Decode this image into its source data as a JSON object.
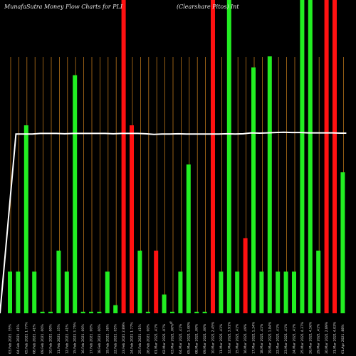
{
  "chart_data": {
    "type": "bar",
    "title_left": "MunafaSutra  Money Flow  Charts for PLI",
    "title_right": "(Clearshare Pitos) Int",
    "center_label": "%",
    "ylim": [
      0,
      100
    ],
    "colors": {
      "background": "#000000",
      "up": "#22ee22",
      "down": "#ff1111",
      "line": "#ffffff",
      "grid": "#b8731a"
    },
    "categories": [
      "03.Feb 2021 .35%",
      "04.Feb 2021 .41%",
      "05.Feb 2021 1.77%",
      "08.Feb 2021 .41%",
      "09.Feb 2021 .00%",
      "10.Feb 2021 .00%",
      "11.Feb 2021 .35%",
      "12.Feb 2021 .41%",
      "15.Feb 2021 3.75%",
      "16.Feb 2021 .00%",
      "17.Feb 2021 .00%",
      "18.Feb 2021 .00%",
      "19.Feb 2021 .36%",
      "22.Feb 2021 .05%",
      "23.Feb 2021 2.89%",
      "24.Feb 2021 1.77%",
      "25.Feb 2021 .41%",
      "26.Feb 2021 .00%",
      "01.Mar 2021 .41%",
      "02.Mar 2021 .07%",
      "03.Mar 2021 .00%",
      "04.Mar 2021 .41%",
      "05.Mar 2021 1.00%",
      "08.Mar 2021 .00%",
      "09.Mar 2021 .00%",
      "10.Mar 2021 2.45%",
      "11.Mar 2021 .41%",
      "12.Mar 2021 3.91%",
      "15.Mar 2021 .41%",
      "16.Mar 2021 .49%",
      "17.Mar 2021 1.34%",
      "18.Mar 2021 .41%",
      "19.Mar 2021 1.84%",
      "22.Mar 2021 .41%",
      "23.Mar 2021 .41%",
      "24.Mar 2021 .41%",
      "25.Mar 2021 4.37%",
      "26.Mar 2021 4.56%",
      "29.Mar 2021 .41%",
      "30.Mar 2021 2.89%",
      "31.Mar 2021 4.03%",
      "01.Apr 2021 .88%"
    ],
    "values": [
      13.3,
      13.3,
      60,
      13.3,
      0.5,
      0.5,
      20,
      13.3,
      76,
      0.5,
      0.5,
      0.5,
      13.3,
      2.6,
      100,
      60,
      20,
      0.5,
      20,
      6,
      0.5,
      13.3,
      47.5,
      0.5,
      0.5,
      100,
      13.3,
      100,
      13.3,
      24,
      78.5,
      13.3,
      82,
      13.3,
      13.3,
      13.3,
      100,
      100,
      20,
      100,
      100,
      45
    ],
    "directions": [
      "up",
      "up",
      "up",
      "up",
      "up",
      "up",
      "up",
      "up",
      "up",
      "up",
      "up",
      "up",
      "up",
      "up",
      "down",
      "down",
      "up",
      "up",
      "down",
      "up",
      "up",
      "up",
      "up",
      "up",
      "up",
      "down",
      "up",
      "up",
      "up",
      "down",
      "up",
      "up",
      "up",
      "up",
      "up",
      "up",
      "up",
      "up",
      "up",
      "down",
      "down",
      "up"
    ],
    "line_values": [
      0,
      57.2,
      57.2,
      57.2,
      57.4,
      57.4,
      57.4,
      57.3,
      57.4,
      57.4,
      57.4,
      57.4,
      57.4,
      57.3,
      57.4,
      57.4,
      57.4,
      57.3,
      57.1,
      57.2,
      57.2,
      57.3,
      57.2,
      57.2,
      57.2,
      57.2,
      57.2,
      57.3,
      57.2,
      57.3,
      57.6,
      57.5,
      57.6,
      57.7,
      57.8,
      57.7,
      57.7,
      57.6,
      57.6,
      57.6,
      57.6,
      57.5
    ]
  }
}
